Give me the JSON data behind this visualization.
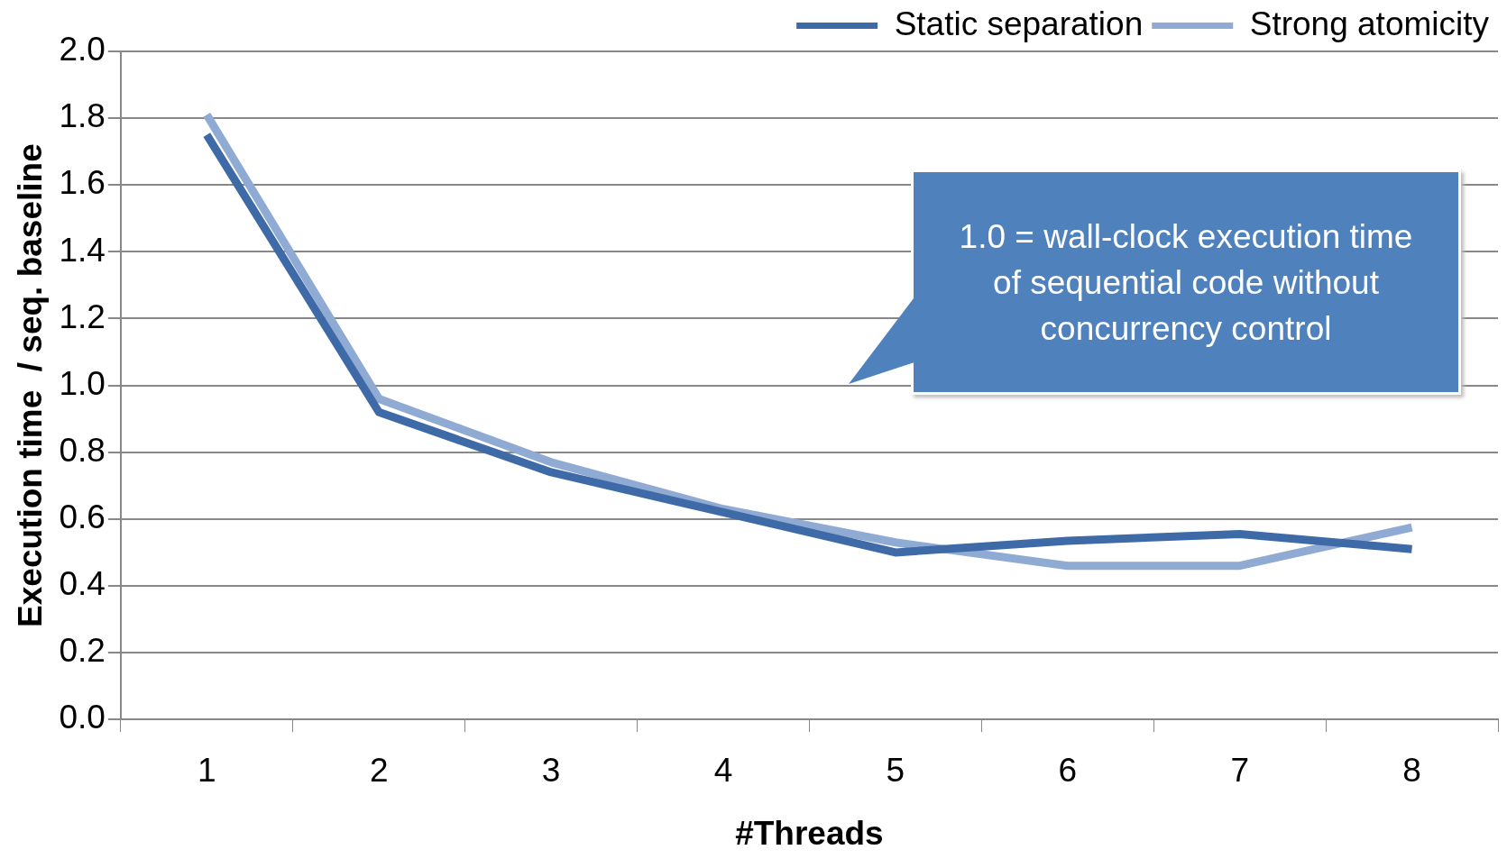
{
  "chart_data": {
    "type": "line",
    "xlabel": "#Threads",
    "ylabel": "Execution time  / seq. baseline",
    "categories": [
      "1",
      "2",
      "3",
      "4",
      "5",
      "6",
      "7",
      "8"
    ],
    "series": [
      {
        "name": "Static separation",
        "color": "#3f6aa8",
        "values": [
          1.75,
          0.92,
          0.74,
          0.62,
          0.5,
          0.535,
          0.555,
          0.51
        ]
      },
      {
        "name": "Strong atomicity",
        "color": "#8faad3",
        "values": [
          1.81,
          0.96,
          0.77,
          0.63,
          0.53,
          0.46,
          0.46,
          0.575
        ]
      }
    ],
    "ylim": [
      0,
      2
    ],
    "yticks": [
      {
        "value": 0,
        "label": "0.0"
      },
      {
        "value": 0.2,
        "label": "0.2"
      },
      {
        "value": 0.4,
        "label": "0.4"
      },
      {
        "value": 0.6,
        "label": "0.6"
      },
      {
        "value": 0.8,
        "label": "0.8"
      },
      {
        "value": 1,
        "label": "1.0"
      },
      {
        "value": 1.2,
        "label": "1.2"
      },
      {
        "value": 1.4,
        "label": "1.4"
      },
      {
        "value": 1.6,
        "label": "1.6"
      },
      {
        "value": 1.8,
        "label": "1.8"
      },
      {
        "value": 2,
        "label": "2.0"
      }
    ],
    "grid": "y",
    "legend": "top right",
    "marker": "none",
    "line_style": "solid",
    "annotations": [
      "1.0 = wall-clock execution time of sequential code without concurrency control"
    ]
  }
}
